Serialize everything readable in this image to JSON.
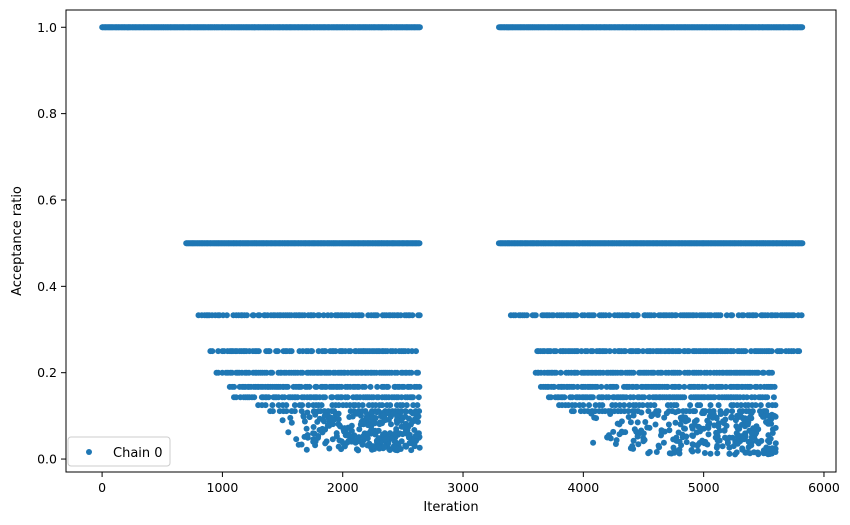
{
  "chart_data": {
    "type": "scatter",
    "xlabel": "Iteration",
    "ylabel": "Acceptance ratio",
    "xlim": [
      -300,
      6100
    ],
    "ylim": [
      -0.03,
      1.04
    ],
    "x_ticks": [
      0,
      1000,
      2000,
      3000,
      4000,
      5000,
      6000
    ],
    "y_ticks": [
      0.0,
      0.2,
      0.4,
      0.6,
      0.8,
      1.0
    ],
    "x_tick_labels": [
      "0",
      "1000",
      "2000",
      "3000",
      "4000",
      "5000",
      "6000"
    ],
    "y_tick_labels": [
      "0.0",
      "0.2",
      "0.4",
      "0.6",
      "0.8",
      "1.0"
    ],
    "grid": false,
    "legend_position": "lower-left",
    "marker_color": "#1f77b4",
    "series": [
      {
        "name": "Chain 0",
        "bands": [
          {
            "y": 1.0,
            "segments": [
              [
                0,
                2640
              ],
              [
                3300,
                5820
              ]
            ],
            "density": "dense"
          },
          {
            "y": 0.5,
            "segments": [
              [
                700,
                2640
              ],
              [
                3300,
                5820
              ]
            ],
            "density": "dense"
          },
          {
            "y": 0.333,
            "segments": [
              [
                800,
                2640
              ],
              [
                3400,
                5820
              ]
            ],
            "density": "medium"
          },
          {
            "y": 0.25,
            "segments": [
              [
                900,
                2640
              ],
              [
                3600,
                5800
              ]
            ],
            "density": "medium"
          },
          {
            "y": 0.2,
            "segments": [
              [
                950,
                2640
              ],
              [
                3600,
                5600
              ]
            ],
            "density": "medium"
          },
          {
            "y": 0.167,
            "segments": [
              [
                1050,
                2640
              ],
              [
                3650,
                5600
              ]
            ],
            "density": "medium"
          },
          {
            "y": 0.143,
            "segments": [
              [
                1100,
                2640
              ],
              [
                3700,
                5600
              ]
            ],
            "density": "medium"
          },
          {
            "y": 0.125,
            "segments": [
              [
                1300,
                2640
              ],
              [
                3800,
                5600
              ]
            ],
            "density": "sparse"
          },
          {
            "y": 0.111,
            "segments": [
              [
                1400,
                2640
              ],
              [
                3900,
                5600
              ]
            ],
            "density": "sparse"
          }
        ],
        "scatter_clusters": [
          {
            "x_range": [
              1500,
              2640
            ],
            "y_range": [
              0.02,
              0.11
            ]
          },
          {
            "x_range": [
              4000,
              5600
            ],
            "y_range": [
              0.01,
              0.11
            ]
          }
        ],
        "points": [
          [
            1500,
            0.09
          ],
          [
            1700,
            0.07
          ],
          [
            1850,
            0.1
          ],
          [
            1950,
            0.06
          ],
          [
            2050,
            0.04
          ],
          [
            2150,
            0.08
          ],
          [
            2250,
            0.03
          ],
          [
            2350,
            0.06
          ],
          [
            2450,
            0.09
          ],
          [
            2550,
            0.05
          ],
          [
            2600,
            0.03
          ],
          [
            4200,
            0.05
          ],
          [
            4600,
            0.08
          ],
          [
            4800,
            0.04
          ],
          [
            4900,
            0.02
          ],
          [
            5000,
            0.07
          ],
          [
            5100,
            0.05
          ],
          [
            5250,
            0.03
          ],
          [
            5400,
            0.06
          ],
          [
            5500,
            0.02
          ],
          [
            5550,
            0.09
          ]
        ]
      }
    ]
  }
}
